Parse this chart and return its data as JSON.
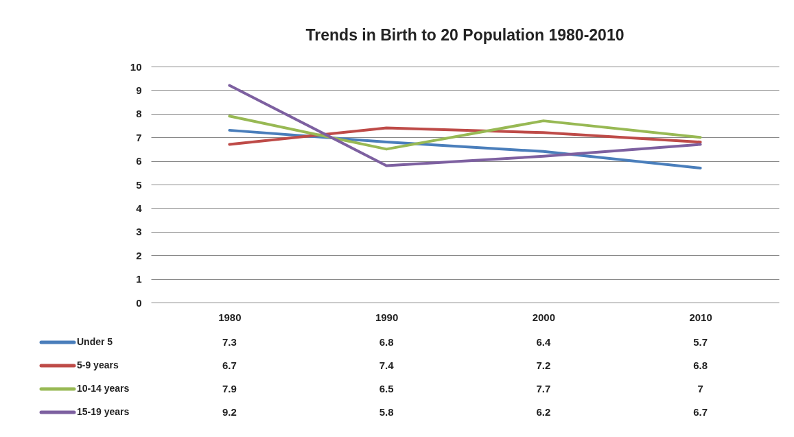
{
  "chart_data": {
    "type": "line",
    "title": "Trends in Birth to 20 Population  1980-2010",
    "categories": [
      "1980",
      "1990",
      "2000",
      "2010"
    ],
    "series": [
      {
        "name": "Under 5",
        "color": "#4a7ebb",
        "values": [
          7.3,
          6.8,
          6.4,
          5.7
        ]
      },
      {
        "name": "5-9 years",
        "color": "#be4b48",
        "values": [
          6.7,
          7.4,
          7.2,
          6.8
        ]
      },
      {
        "name": "10-14 years",
        "color": "#98b954",
        "values": [
          7.9,
          6.5,
          7.7,
          7
        ]
      },
      {
        "name": "15-19 years",
        "color": "#7d60a0",
        "values": [
          9.2,
          5.8,
          6.2,
          6.7
        ]
      }
    ],
    "ylim": [
      0,
      10
    ],
    "yticks": [
      0,
      1,
      2,
      3,
      4,
      5,
      6,
      7,
      8,
      9,
      10
    ],
    "grid": "y",
    "legend": "bottom",
    "data_labels": true,
    "marker": "none"
  }
}
